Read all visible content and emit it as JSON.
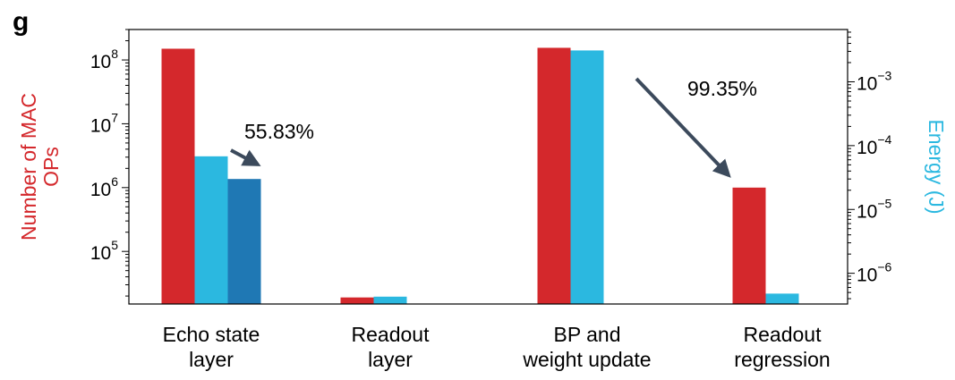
{
  "panel_label": "g",
  "colors": {
    "mac_ops": "#d4282c",
    "energy_light": "#2bb8e0",
    "energy_dark": "#1f78b4",
    "arrow": "#3c4a5c",
    "axis": "#000000"
  },
  "chart_data": {
    "type": "bar",
    "title": "",
    "categories": [
      [
        "Echo state",
        "layer"
      ],
      [
        "Readout",
        "layer"
      ],
      [
        "BP and",
        "weight update"
      ],
      [
        "Readout",
        "regression"
      ]
    ],
    "left_axis": {
      "label_lines": [
        "Number of MAC",
        "OPs"
      ],
      "scale": "log",
      "range": [
        15000,
        300000000
      ],
      "major_ticks": [
        {
          "value": 100000,
          "base": "10",
          "exp": "5"
        },
        {
          "value": 1000000,
          "base": "10",
          "exp": "6"
        },
        {
          "value": 10000000,
          "base": "10",
          "exp": "7"
        },
        {
          "value": 100000000,
          "base": "10",
          "exp": "8"
        }
      ]
    },
    "right_axis": {
      "label": "Energy (J)",
      "scale": "log",
      "range": [
        3.3e-07,
        0.0066
      ],
      "major_ticks": [
        {
          "value": 1e-06,
          "base": "10",
          "exp": "−6"
        },
        {
          "value": 1e-05,
          "base": "10",
          "exp": "−5"
        },
        {
          "value": 0.0001,
          "base": "10",
          "exp": "−4"
        },
        {
          "value": 0.001,
          "base": "10",
          "exp": "−3"
        }
      ]
    },
    "series": [
      {
        "name": "",
        "axis": "left",
        "color_key": "mac_ops",
        "values": [
          150000000,
          19000,
          155000000,
          1000000
        ]
      },
      {
        "name": "",
        "axis": "right",
        "color_key": "energy_light",
        "values": [
          6.8e-05,
          4.3e-07,
          0.0031,
          4.8e-07
        ]
      },
      {
        "name": "",
        "axis": "right",
        "color_key": "energy_dark",
        "values": [
          3e-05,
          null,
          null,
          null
        ]
      }
    ],
    "annotations": [
      {
        "text": "55.83%",
        "from_category": 0,
        "to_category": 0
      },
      {
        "text": "99.35%",
        "from_category": 2,
        "to_category": 3
      }
    ]
  }
}
